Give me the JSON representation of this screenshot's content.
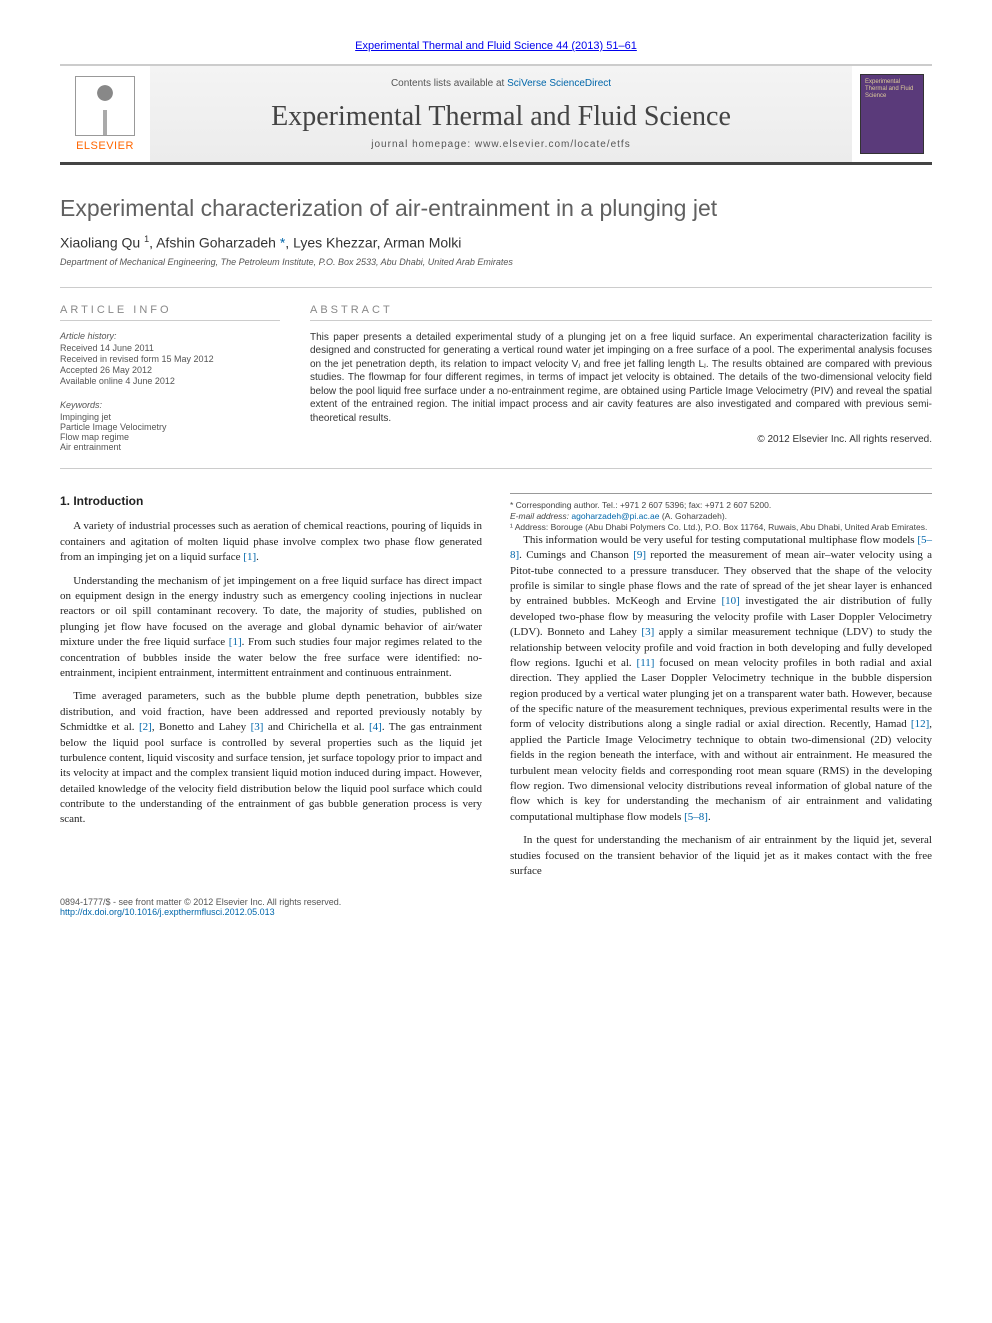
{
  "meta": {
    "journal_ref": "Experimental Thermal and Fluid Science 44 (2013) 51–61",
    "contents_prefix": "Contents lists available at ",
    "contents_link": "SciVerse ScienceDirect",
    "journal_title": "Experimental Thermal and Fluid Science",
    "homepage_label": "journal homepage: www.elsevier.com/locate/etfs",
    "publisher": "ELSEVIER",
    "cover_text": "Experimental Thermal and Fluid Science"
  },
  "article": {
    "title": "Experimental characterization of air-entrainment in a plunging jet",
    "authors_html": "Xiaoliang Qu <sup>1</sup>, Afshin Goharzadeh <a href=\"#\">*</a>, Lyes Khezzar, Arman Molki",
    "affiliation": "Department of Mechanical Engineering, The Petroleum Institute, P.O. Box 2533, Abu Dhabi, United Arab Emirates"
  },
  "info": {
    "heading": "article info",
    "history_label": "Article history:",
    "history": [
      "Received 14 June 2011",
      "Received in revised form 15 May 2012",
      "Accepted 26 May 2012",
      "Available online 4 June 2012"
    ],
    "kw_label": "Keywords:",
    "keywords": [
      "Impinging jet",
      "Particle Image Velocimetry",
      "Flow map regime",
      "Air entrainment"
    ]
  },
  "abstract": {
    "heading": "abstract",
    "text": "This paper presents a detailed experimental study of a plunging jet on a free liquid surface. An experimental characterization facility is designed and constructed for generating a vertical round water jet impinging on a free surface of a pool. The experimental analysis focuses on the jet penetration depth, its relation to impact velocity Vⱼ and free jet falling length Lⱼ. The results obtained are compared with previous studies. The flowmap for four different regimes, in terms of impact jet velocity is obtained. The details of the two-dimensional velocity field below the pool liquid free surface under a no-entrainment regime, are obtained using Particle Image Velocimetry (PIV) and reveal the spatial extent of the entrained region. The initial impact process and air cavity features are also investigated and compared with previous semi-theoretical results.",
    "copyright": "© 2012 Elsevier Inc. All rights reserved."
  },
  "body": {
    "section_heading": "1. Introduction",
    "paragraphs": [
      "A variety of industrial processes such as aeration of chemical reactions, pouring of liquids in containers and agitation of molten liquid phase involve complex two phase flow generated from an impinging jet on a liquid surface [1].",
      "Understanding the mechanism of jet impingement on a free liquid surface has direct impact on equipment design in the energy industry such as emergency cooling injections in nuclear reactors or oil spill contaminant recovery. To date, the majority of studies, published on plunging jet flow have focused on the average and global dynamic behavior of air/water mixture under the free liquid surface [1]. From such studies four major regimes related to the concentration of bubbles inside the water below the free surface were identified: no-entrainment, incipient entrainment, intermittent entrainment and continuous entrainment.",
      "Time averaged parameters, such as the bubble plume depth penetration, bubbles size distribution, and void fraction, have been addressed and reported previously notably by Schmidtke et al. [2], Bonetto and Lahey [3] and Chirichella et al. [4]. The gas entrainment below the liquid pool surface is controlled by several properties such as the liquid jet turbulence content, liquid viscosity and surface tension, jet surface topology prior to impact and its velocity at impact and the complex transient liquid motion induced during impact. However, detailed knowledge of the velocity field distribution below the liquid pool surface which could contribute to the understanding of the entrainment of gas bubble generation process is very scant.",
      "This information would be very useful for testing computational multiphase flow models [5–8]. Cumings and Chanson [9] reported the measurement of mean air–water velocity using a Pitot-tube connected to a pressure transducer. They observed that the shape of the velocity profile is similar to single phase flows and the rate of spread of the jet shear layer is enhanced by entrained bubbles. McKeogh and Ervine [10] investigated the air distribution of fully developed two-phase flow by measuring the velocity profile with Laser Doppler Velocimetry (LDV). Bonneto and Lahey [3] apply a similar measurement technique (LDV) to study the relationship between velocity profile and void fraction in both developing and fully developed flow regions. Iguchi et al. [11] focused on mean velocity profiles in both radial and axial direction. They applied the Laser Doppler Velocimetry technique in the bubble dispersion region produced by a vertical water plunging jet on a transparent water bath. However, because of the specific nature of the measurement techniques, previous experimental results were in the form of velocity distributions along a single radial or axial direction. Recently, Hamad [12], applied the Particle Image Velocimetry technique to obtain two-dimensional (2D) velocity fields in the region beneath the interface, with and without air entrainment. He measured the turbulent mean velocity fields and corresponding root mean square (RMS) in the developing flow region. Two dimensional velocity distributions reveal information of global nature of the flow which is key for understanding the mechanism of air entrainment and validating computational multiphase flow models [5–8].",
      "In the quest for understanding the mechanism of air entrainment by the liquid jet, several studies focused on the transient behavior of the liquid jet as it makes contact with the free surface"
    ]
  },
  "footnotes": {
    "corr": "* Corresponding author. Tel.: +971 2 607 5396; fax: +971 2 607 5200.",
    "email_label": "E-mail address: ",
    "email": "agoharzadeh@pi.ac.ae",
    "email_suffix": " (A. Goharzadeh).",
    "addr": "¹ Address: Borouge (Abu Dhabi Polymers Co. Ltd.), P.O. Box 11764, Ruwais, Abu Dhabi, United Arab Emirates."
  },
  "footer": {
    "front": "0894-1777/$ - see front matter © 2012 Elsevier Inc. All rights reserved.",
    "doi": "http://dx.doi.org/10.1016/j.expthermflusci.2012.05.013"
  },
  "refs": {
    "r1": "[1]",
    "r2": "[2]",
    "r3": "[3]",
    "r4": "[4]",
    "r58": "[5–8]",
    "r9": "[9]",
    "r10": "[10]",
    "r11": "[11]",
    "r12": "[12]"
  },
  "colors": {
    "link": "#0066aa",
    "rule": "#cccccc",
    "publisher": "#ff6600",
    "cover_bg": "#5a3a7a"
  }
}
